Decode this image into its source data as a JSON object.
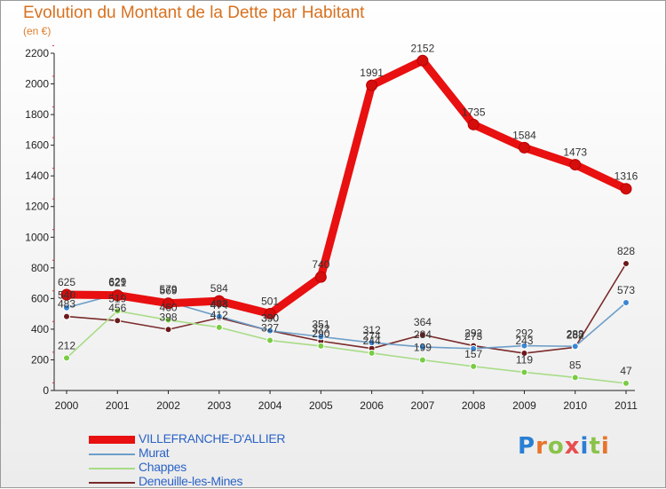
{
  "title": "Evolution du Montant de la Dette par Habitant",
  "unit": "(en €)",
  "logo": {
    "text": "Proxiti",
    "letters": [
      "P",
      "r",
      "o",
      "x",
      "i",
      "t",
      "i"
    ],
    "colors": [
      "#2a7fd4",
      "#e8742a",
      "#8bc34a",
      "#e84e4e",
      "#2a7fd4",
      "#8bc34a",
      "#e8742a"
    ]
  },
  "chart_data": {
    "type": "line",
    "title": "Evolution du Montant de la Dette par Habitant",
    "ylabel": "(en €)",
    "xlabel": "",
    "x": [
      "2000",
      "2001",
      "2002",
      "2003",
      "2004",
      "2005",
      "2006",
      "2007",
      "2008",
      "2009",
      "2010",
      "2011"
    ],
    "ylim": [
      0,
      2200
    ],
    "yticks": [
      0,
      200,
      400,
      600,
      800,
      1000,
      1200,
      1400,
      1600,
      1800,
      2000,
      2200
    ],
    "grid": false,
    "legend": "bottom-left",
    "series": [
      {
        "name": "VILLEFRANCHE-D'ALLIER",
        "color": "#e81010",
        "marker": "#d40d0d",
        "values": [
          625,
          621,
          569,
          584,
          501,
          740,
          1991,
          2152,
          1735,
          1584,
          1473,
          1316
        ]
      },
      {
        "name": "Murat",
        "color": "#6d9ec8",
        "marker": "#3a86d4",
        "values": [
          540,
          629,
          579,
          483,
          390,
          351,
          312,
          284,
          273,
          292,
          288,
          573
        ]
      },
      {
        "name": "Chappes",
        "color": "#a8dc86",
        "marker": "#79cc44",
        "values": [
          212,
          519,
          460,
          412,
          327,
          290,
          244,
          199,
          157,
          119,
          85,
          47
        ]
      },
      {
        "name": "Deneuille-les-Mines",
        "color": "#7a2a2a",
        "marker": "#6b1a1a",
        "values": [
          483,
          456,
          398,
          474,
          390,
          322,
          274,
          364,
          292,
          243,
          282,
          828
        ]
      }
    ]
  }
}
